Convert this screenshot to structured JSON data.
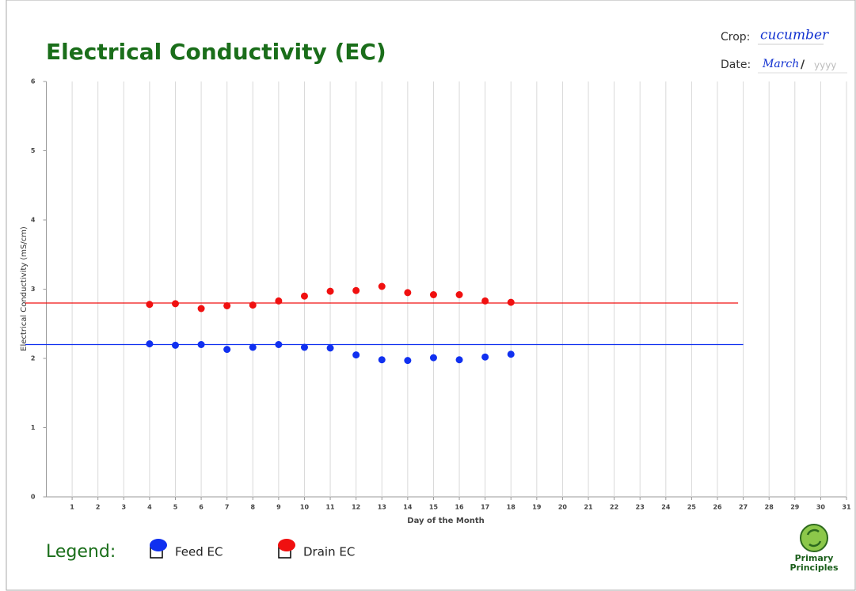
{
  "chart_data": {
    "type": "scatter",
    "title": "Electrical Conductivity (EC)",
    "x_label": "Day of the Month",
    "y_label": "Electrical Conductivity (mS/cm)",
    "xlim": [
      0,
      31
    ],
    "ylim": [
      0,
      6
    ],
    "xticks": [
      1,
      2,
      3,
      4,
      5,
      6,
      7,
      8,
      9,
      10,
      11,
      12,
      13,
      14,
      15,
      16,
      17,
      18,
      19,
      20,
      21,
      22,
      23,
      24,
      25,
      26,
      27,
      28,
      29,
      30,
      31
    ],
    "yticks": [
      0,
      1,
      2,
      3,
      4,
      5,
      6
    ],
    "grid": "x",
    "x": [
      4,
      5,
      6,
      7,
      8,
      9,
      10,
      11,
      12,
      13,
      14,
      15,
      16,
      17,
      18
    ],
    "series": [
      {
        "name": "Feed EC",
        "color": "#1030f0",
        "values": [
          2.21,
          2.19,
          2.2,
          2.13,
          2.16,
          2.2,
          2.16,
          2.15,
          2.05,
          1.98,
          1.97,
          2.01,
          1.98,
          2.02,
          2.06
        ]
      },
      {
        "name": "Drain EC",
        "color": "#f01010",
        "values": [
          2.78,
          2.79,
          2.72,
          2.76,
          2.77,
          2.83,
          2.9,
          2.97,
          2.98,
          3.04,
          2.95,
          2.92,
          2.92,
          2.83,
          2.81
        ]
      }
    ],
    "target_lines": [
      {
        "y": 2.2,
        "x_end": 27,
        "color": "#1030f0"
      },
      {
        "y": 2.8,
        "x_end": 26.8,
        "color": "#f01010"
      }
    ],
    "legend_title": "Legend:",
    "header": {
      "crop_label": "Crop:",
      "crop": "cucumber",
      "date_label": "Date:",
      "month": "March",
      "separator": "/",
      "year_placeholder": "yyyy"
    },
    "logo_text": [
      "Primary",
      "Principles"
    ]
  }
}
